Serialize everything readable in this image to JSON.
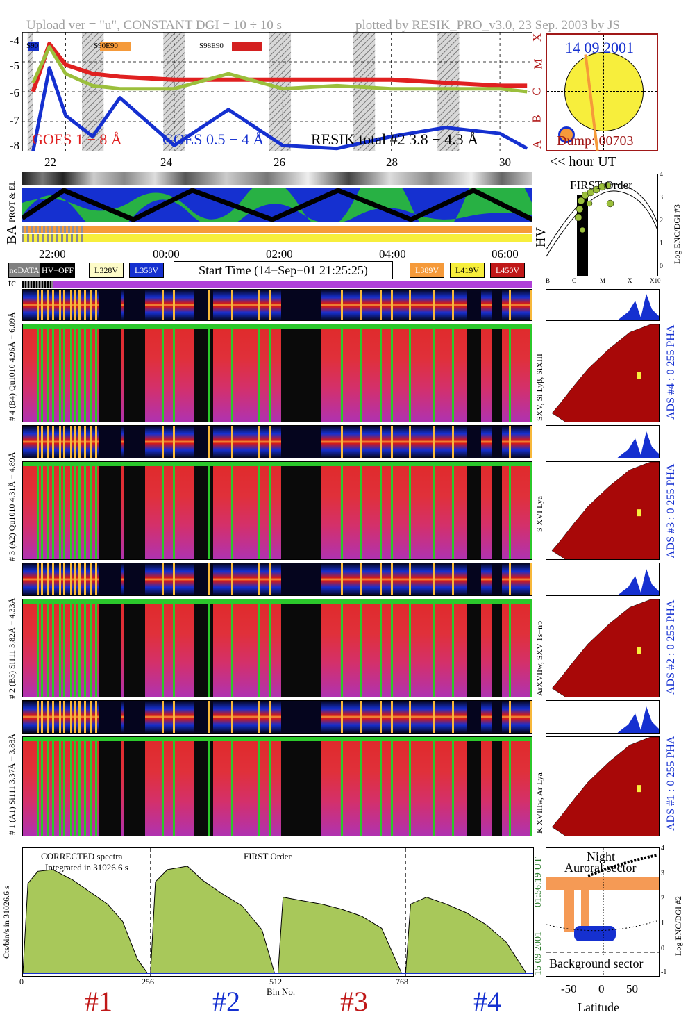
{
  "header": {
    "left": "Upload ver = \"u\", CONSTANT  DGI =  10 ÷  10 s",
    "right": "plotted by RESIK_PRO_v3.0, 23 Sep. 2003 by JS"
  },
  "goes_panel": {
    "y_ticks": [
      "-4",
      "-5",
      "-6",
      "-7",
      "-8"
    ],
    "class_letters": [
      "X",
      "M",
      "C",
      "B",
      "A"
    ],
    "top_tags": [
      "S90",
      "S90E90",
      "S98E90"
    ],
    "tag_colors": [
      "#1530c8",
      "#f59a3a",
      "#d42020"
    ],
    "legend_goes1": "GOES 1 − 8 Å",
    "legend_goes2": "GOES 0.5 − 4 Å",
    "legend_resik": "RESIK total #2  3.8 − 4.3 Å",
    "x_ticks": [
      "22",
      "24",
      "26",
      "28",
      "30"
    ],
    "x_axis_label": "<< hour UT",
    "colors": {
      "goes1": "#e02020",
      "goes2": "#1530d0",
      "resik": "#9bbf3c",
      "resik_alt": "#f59a55"
    }
  },
  "sun_panel": {
    "date": "14 09 2001",
    "dump": "Dump: 00703",
    "disc_color": "#f7ee3c",
    "border_color": "#a01818"
  },
  "housekeeping": {
    "label_prot": "PROT & EL",
    "label_ba": "BA",
    "label_hv": "HV",
    "label_tc": "tc"
  },
  "first_order_scatter": {
    "title": "FIRST Order",
    "y_label": "Log ENC/DGI #3",
    "y_ticks": [
      "4",
      "3",
      "2",
      "1",
      "0"
    ],
    "x_ticks": [
      "B",
      "C",
      "M",
      "X",
      "X10"
    ]
  },
  "time_axis": {
    "ticks": [
      "22:00",
      "00:00",
      "02:00",
      "04:00",
      "06:00"
    ]
  },
  "legend_bar": {
    "items": [
      {
        "label": "noDATA",
        "bg": "#808080",
        "fg": "#ffffff"
      },
      {
        "label": "HV−OFF",
        "bg": "#000000",
        "fg": "#ffffff"
      },
      {
        "label": "L328V",
        "bg": "#fdfbc8",
        "fg": "#000000"
      },
      {
        "label": "L358V",
        "bg": "#1530d0",
        "fg": "#ffffff"
      }
    ],
    "start_time": "Start Time (14−Sep−01 21:25:25)",
    "items_right": [
      {
        "label": "L389V",
        "bg": "#f59a3a",
        "fg": "#ffffff"
      },
      {
        "label": "L419V",
        "bg": "#f7ee3c",
        "fg": "#000000"
      },
      {
        "label": "L450V",
        "bg": "#c01818",
        "fg": "#ffffff"
      }
    ]
  },
  "channels": [
    {
      "range_label": "# 4 (B4)  Qu1010  4.96Å − 6.09Å",
      "lines_label": "SXV, Si Lyβ, SiXIII",
      "ads_label": "ADS #4 :  0 255  PHA"
    },
    {
      "range_label": "# 3 (A2)  Qu1010  4.31Å − 4.89Å",
      "lines_label": "S XVI Lya",
      "ads_label": "ADS #3 :  0 255  PHA"
    },
    {
      "range_label": "# 2 (B3)  Si111  3.82Å − 4.33Å",
      "lines_label": "ArXVIIw, SXV 1s−np",
      "ads_label": "ADS #2 :  0 255  PHA"
    },
    {
      "range_label": "# 1 (A1)  Si111  3.37Å − 3.88Å",
      "lines_label": "K XVIIIw, Ar Lya",
      "ads_label": "ADS #1 :  0 255  PHA"
    }
  ],
  "bottom_spectrum": {
    "title_left": "CORRECTED spectra",
    "title_right": "FIRST Order",
    "integrated": "Integrated in 31026.6 s",
    "y_label": "Cts/bin/s in 31026.6 s",
    "right_label_time": "01:56:19 UT",
    "right_label_date": "15 09 2001",
    "x_ticks": [
      "0",
      "256",
      "512",
      "768"
    ],
    "x_label": "Bin No.",
    "channel_labels": [
      "#1",
      "#2",
      "#3",
      "#4"
    ],
    "channel_label_colors": [
      "#c01818",
      "#1530d0",
      "#c01818",
      "#1530d0"
    ],
    "fill_color": "#a8c85a"
  },
  "latitude_panel": {
    "label_night": "Night",
    "label_auroral": "Auroral sector",
    "label_background": "Background sector",
    "x_label": "Latitude",
    "x_ticks": [
      "-50",
      "0",
      "50"
    ],
    "y_label": "Log ENC/DGI #2",
    "y_ticks": [
      "4",
      "3",
      "2",
      "1",
      "0",
      "-1"
    ]
  },
  "chart_data": [
    {
      "type": "line",
      "title": "",
      "xlabel": "<< hour UT",
      "ylabel": "",
      "x_ticks": [
        "22",
        "24",
        "26",
        "28",
        "30"
      ],
      "ylim": [
        -8,
        -4
      ],
      "series": [
        {
          "name": "GOES 1 − 8 Å",
          "x": [
            21.4,
            21.7,
            22.0,
            22.5,
            23.0,
            24.0,
            25.0,
            26.0,
            27.0,
            28.0,
            29.0,
            30.0,
            30.5
          ],
          "values": [
            -6.0,
            -4.4,
            -5.1,
            -5.4,
            -5.5,
            -5.6,
            -5.6,
            -5.6,
            -5.6,
            -5.6,
            -5.7,
            -5.8,
            -5.8
          ]
        },
        {
          "name": "GOES 0.5 − 4 Å",
          "x": [
            21.4,
            21.7,
            22.0,
            22.5,
            23.0,
            24.0,
            25.0,
            26.0,
            27.0,
            28.0,
            29.0,
            30.0,
            30.5
          ],
          "values": [
            -8.0,
            -5.2,
            -6.8,
            -7.5,
            -6.2,
            -7.8,
            -6.6,
            -7.8,
            -7.9,
            -7.5,
            -7.2,
            -7.4,
            -7.9
          ]
        },
        {
          "name": "RESIK total #2  3.8 − 4.3 Å",
          "x": [
            21.4,
            21.7,
            22.0,
            22.5,
            23.0,
            24.0,
            25.0,
            26.0,
            27.0,
            28.0,
            29.0,
            30.0,
            30.5
          ],
          "values": [
            -5.7,
            -4.5,
            -5.4,
            -5.8,
            -5.9,
            -5.9,
            -5.4,
            -5.9,
            -5.8,
            -5.9,
            -5.9,
            -5.9,
            -6.0
          ]
        }
      ]
    },
    {
      "type": "area",
      "title": "CORRECTED spectra",
      "xlabel": "Bin No.",
      "ylabel": "Cts/bin/s in 31026.6 s",
      "x_ticks": [
        0,
        256,
        512,
        768
      ],
      "series": [
        {
          "name": "#1",
          "x": [
            0,
            10,
            30,
            60,
            100,
            140,
            170,
            200,
            230,
            250
          ],
          "values": [
            0,
            5.2,
            5.9,
            6.0,
            5.4,
            4.6,
            4.0,
            3.0,
            0.8,
            0
          ]
        },
        {
          "name": "#2",
          "x": [
            256,
            266,
            290,
            330,
            360,
            400,
            440,
            480,
            505
          ],
          "values": [
            0,
            5.3,
            6.0,
            6.2,
            5.4,
            4.6,
            3.9,
            2.5,
            0
          ]
        },
        {
          "name": "#3",
          "x": [
            512,
            522,
            560,
            600,
            640,
            680,
            720,
            760
          ],
          "values": [
            0,
            4.4,
            4.2,
            4.0,
            3.7,
            3.3,
            2.6,
            0
          ]
        },
        {
          "name": "#4",
          "x": [
            768,
            778,
            810,
            850,
            890,
            930,
            970,
            1010
          ],
          "values": [
            0,
            4.0,
            4.4,
            4.0,
            3.5,
            2.8,
            1.8,
            0
          ]
        }
      ]
    }
  ]
}
